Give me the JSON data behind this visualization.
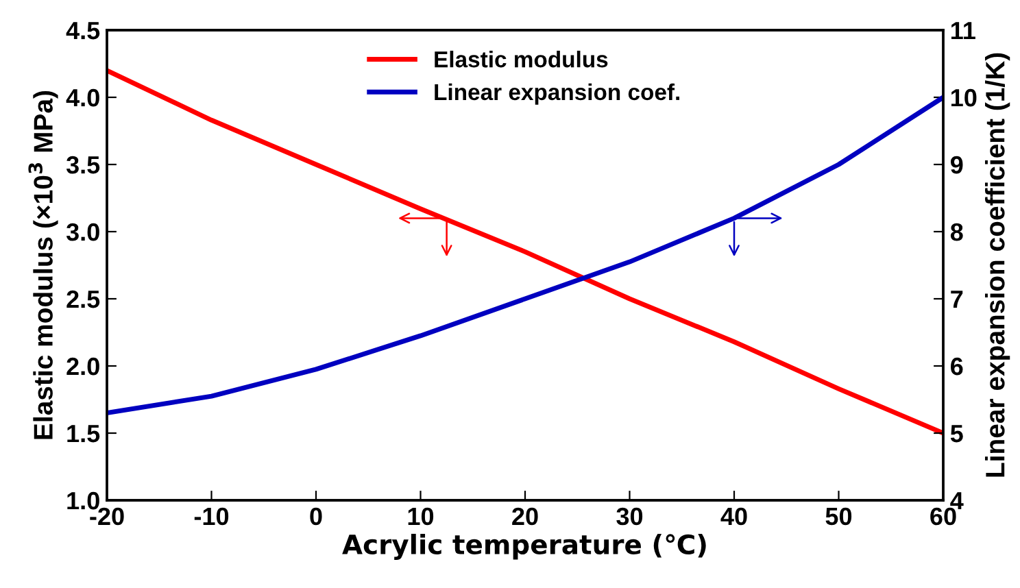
{
  "chart_data": {
    "type": "line",
    "xlabel": "Acrylic temperature (℃)",
    "ylabel": "Elastic modulus (×10$^{3}$ MPa)",
    "y2label": "Linear expansion coefficient (1/K)",
    "x": [
      -20,
      -10,
      0,
      10,
      20,
      30,
      40,
      50,
      60
    ],
    "series": [
      {
        "name": "Elastic modulus",
        "color": "#ff0000",
        "values": [
          4.2,
          3.83,
          3.5,
          3.17,
          2.85,
          2.5,
          2.18,
          1.83,
          1.5
        ]
      },
      {
        "name": "Linear expansion coef.",
        "color": "#0000c0",
        "axis": "y2",
        "values": [
          5.3,
          5.55,
          5.95,
          6.45,
          7.0,
          7.55,
          8.2,
          9.0,
          10.0
        ]
      }
    ],
    "xlim": [
      -20,
      60
    ],
    "xticks": [
      -20,
      -10,
      0,
      10,
      20,
      30,
      40,
      50,
      60
    ],
    "ylim": [
      1.0,
      4.5
    ],
    "yticks": [
      {
        "value": 1.0,
        "label": "1.0"
      },
      {
        "value": 1.5,
        "label": "1.5"
      },
      {
        "value": 2.0,
        "label": "2.0"
      },
      {
        "value": 2.5,
        "label": "2.5"
      },
      {
        "value": 3.0,
        "label": "3.0"
      },
      {
        "value": 3.5,
        "label": "3.5"
      },
      {
        "value": 4.0,
        "label": "4.0"
      },
      {
        "value": 4.5,
        "label": "4.5"
      }
    ],
    "y2lim": [
      4,
      11
    ],
    "y2ticks": [
      4,
      5,
      6,
      7,
      8,
      9,
      10,
      11
    ],
    "legend": "top",
    "grid": false,
    "marker": "none",
    "line_style": "solid"
  }
}
